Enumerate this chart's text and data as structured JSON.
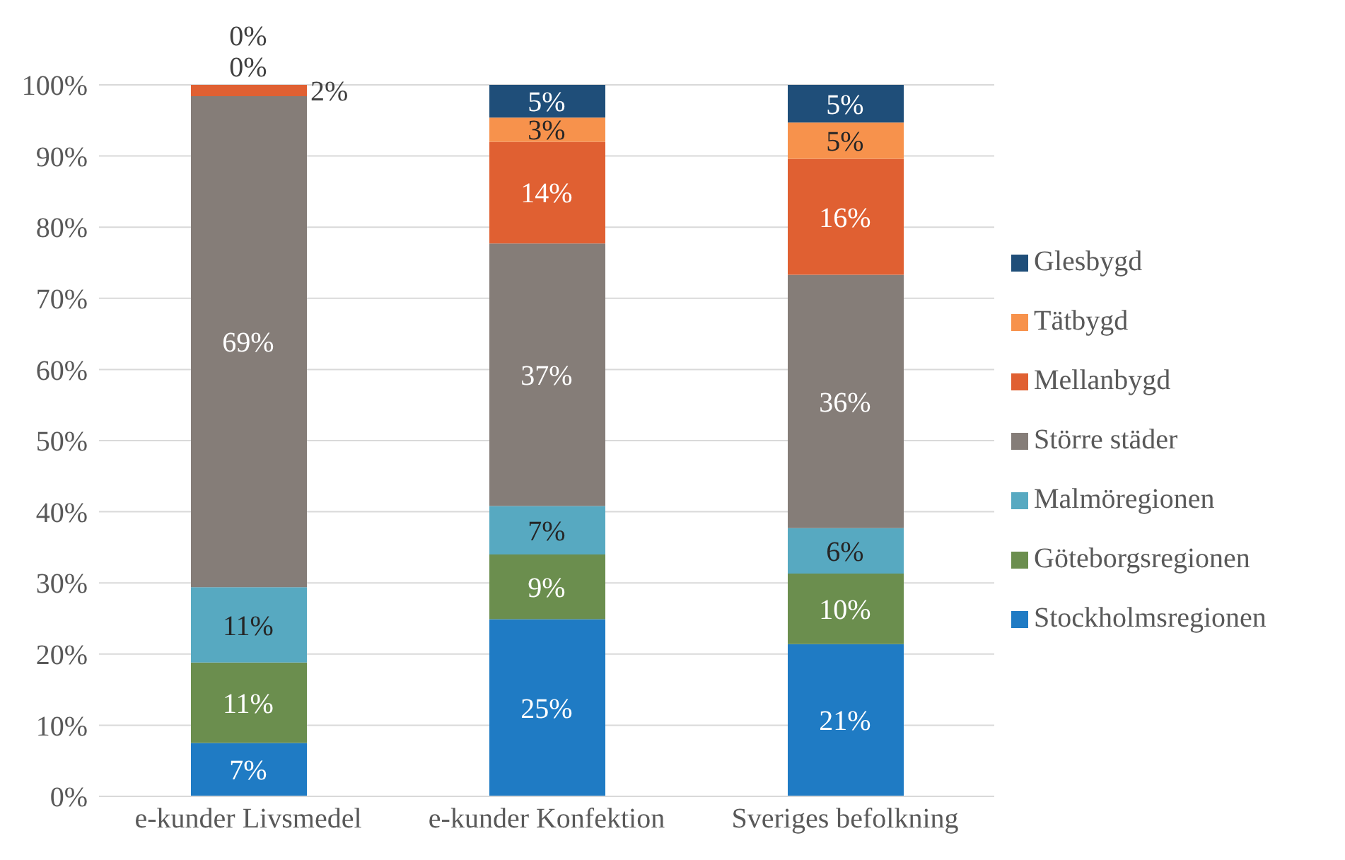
{
  "chart_data": {
    "type": "bar",
    "stacked": true,
    "categories": [
      "e-kunder Livsmedel",
      "e-kunder Konfektion",
      "Sveriges befolkning"
    ],
    "series": [
      {
        "name": "Stockholmsregionen",
        "color": "#1f7bc4",
        "values": [
          7.5,
          24.9,
          21.4
        ],
        "value_labels": [
          "7%",
          "25%",
          "21%"
        ]
      },
      {
        "name": "Göteborgsregionen",
        "color": "#6b8e4e",
        "values": [
          11.3,
          9.1,
          9.9
        ],
        "value_labels": [
          "11%",
          "9%",
          "10%"
        ]
      },
      {
        "name": "Malmöregionen",
        "color": "#57a9c1",
        "values": [
          10.6,
          6.8,
          6.4
        ],
        "value_labels": [
          "11%",
          "7%",
          "6%"
        ]
      },
      {
        "name": "Större städer",
        "color": "#857d78",
        "values": [
          69.0,
          36.9,
          35.6
        ],
        "value_labels": [
          "69%",
          "37%",
          "36%"
        ]
      },
      {
        "name": "Mellanbygd",
        "color": "#e06032",
        "values": [
          1.6,
          14.3,
          16.3
        ],
        "value_labels": [
          "2%",
          "14%",
          "16%"
        ]
      },
      {
        "name": "Tätbygd",
        "color": "#f7924c",
        "values": [
          0,
          3.4,
          5.1
        ],
        "value_labels": [
          "0%",
          "3%",
          "5%"
        ]
      },
      {
        "name": "Glesbygd",
        "color": "#1f4e79",
        "values": [
          0,
          4.6,
          5.3
        ],
        "value_labels": [
          "0%",
          "5%",
          "5%"
        ]
      }
    ],
    "ylim": [
      0,
      100
    ],
    "yticks": [
      {
        "value": 0,
        "label": "0%"
      },
      {
        "value": 10,
        "label": "10%"
      },
      {
        "value": 20,
        "label": "20%"
      },
      {
        "value": 30,
        "label": "30%"
      },
      {
        "value": 40,
        "label": "40%"
      },
      {
        "value": 50,
        "label": "50%"
      },
      {
        "value": 60,
        "label": "60%"
      },
      {
        "value": 70,
        "label": "70%"
      },
      {
        "value": 80,
        "label": "80%"
      },
      {
        "value": 90,
        "label": "90%"
      },
      {
        "value": 100,
        "label": "100%"
      }
    ],
    "grid": "y",
    "legend": "right"
  }
}
